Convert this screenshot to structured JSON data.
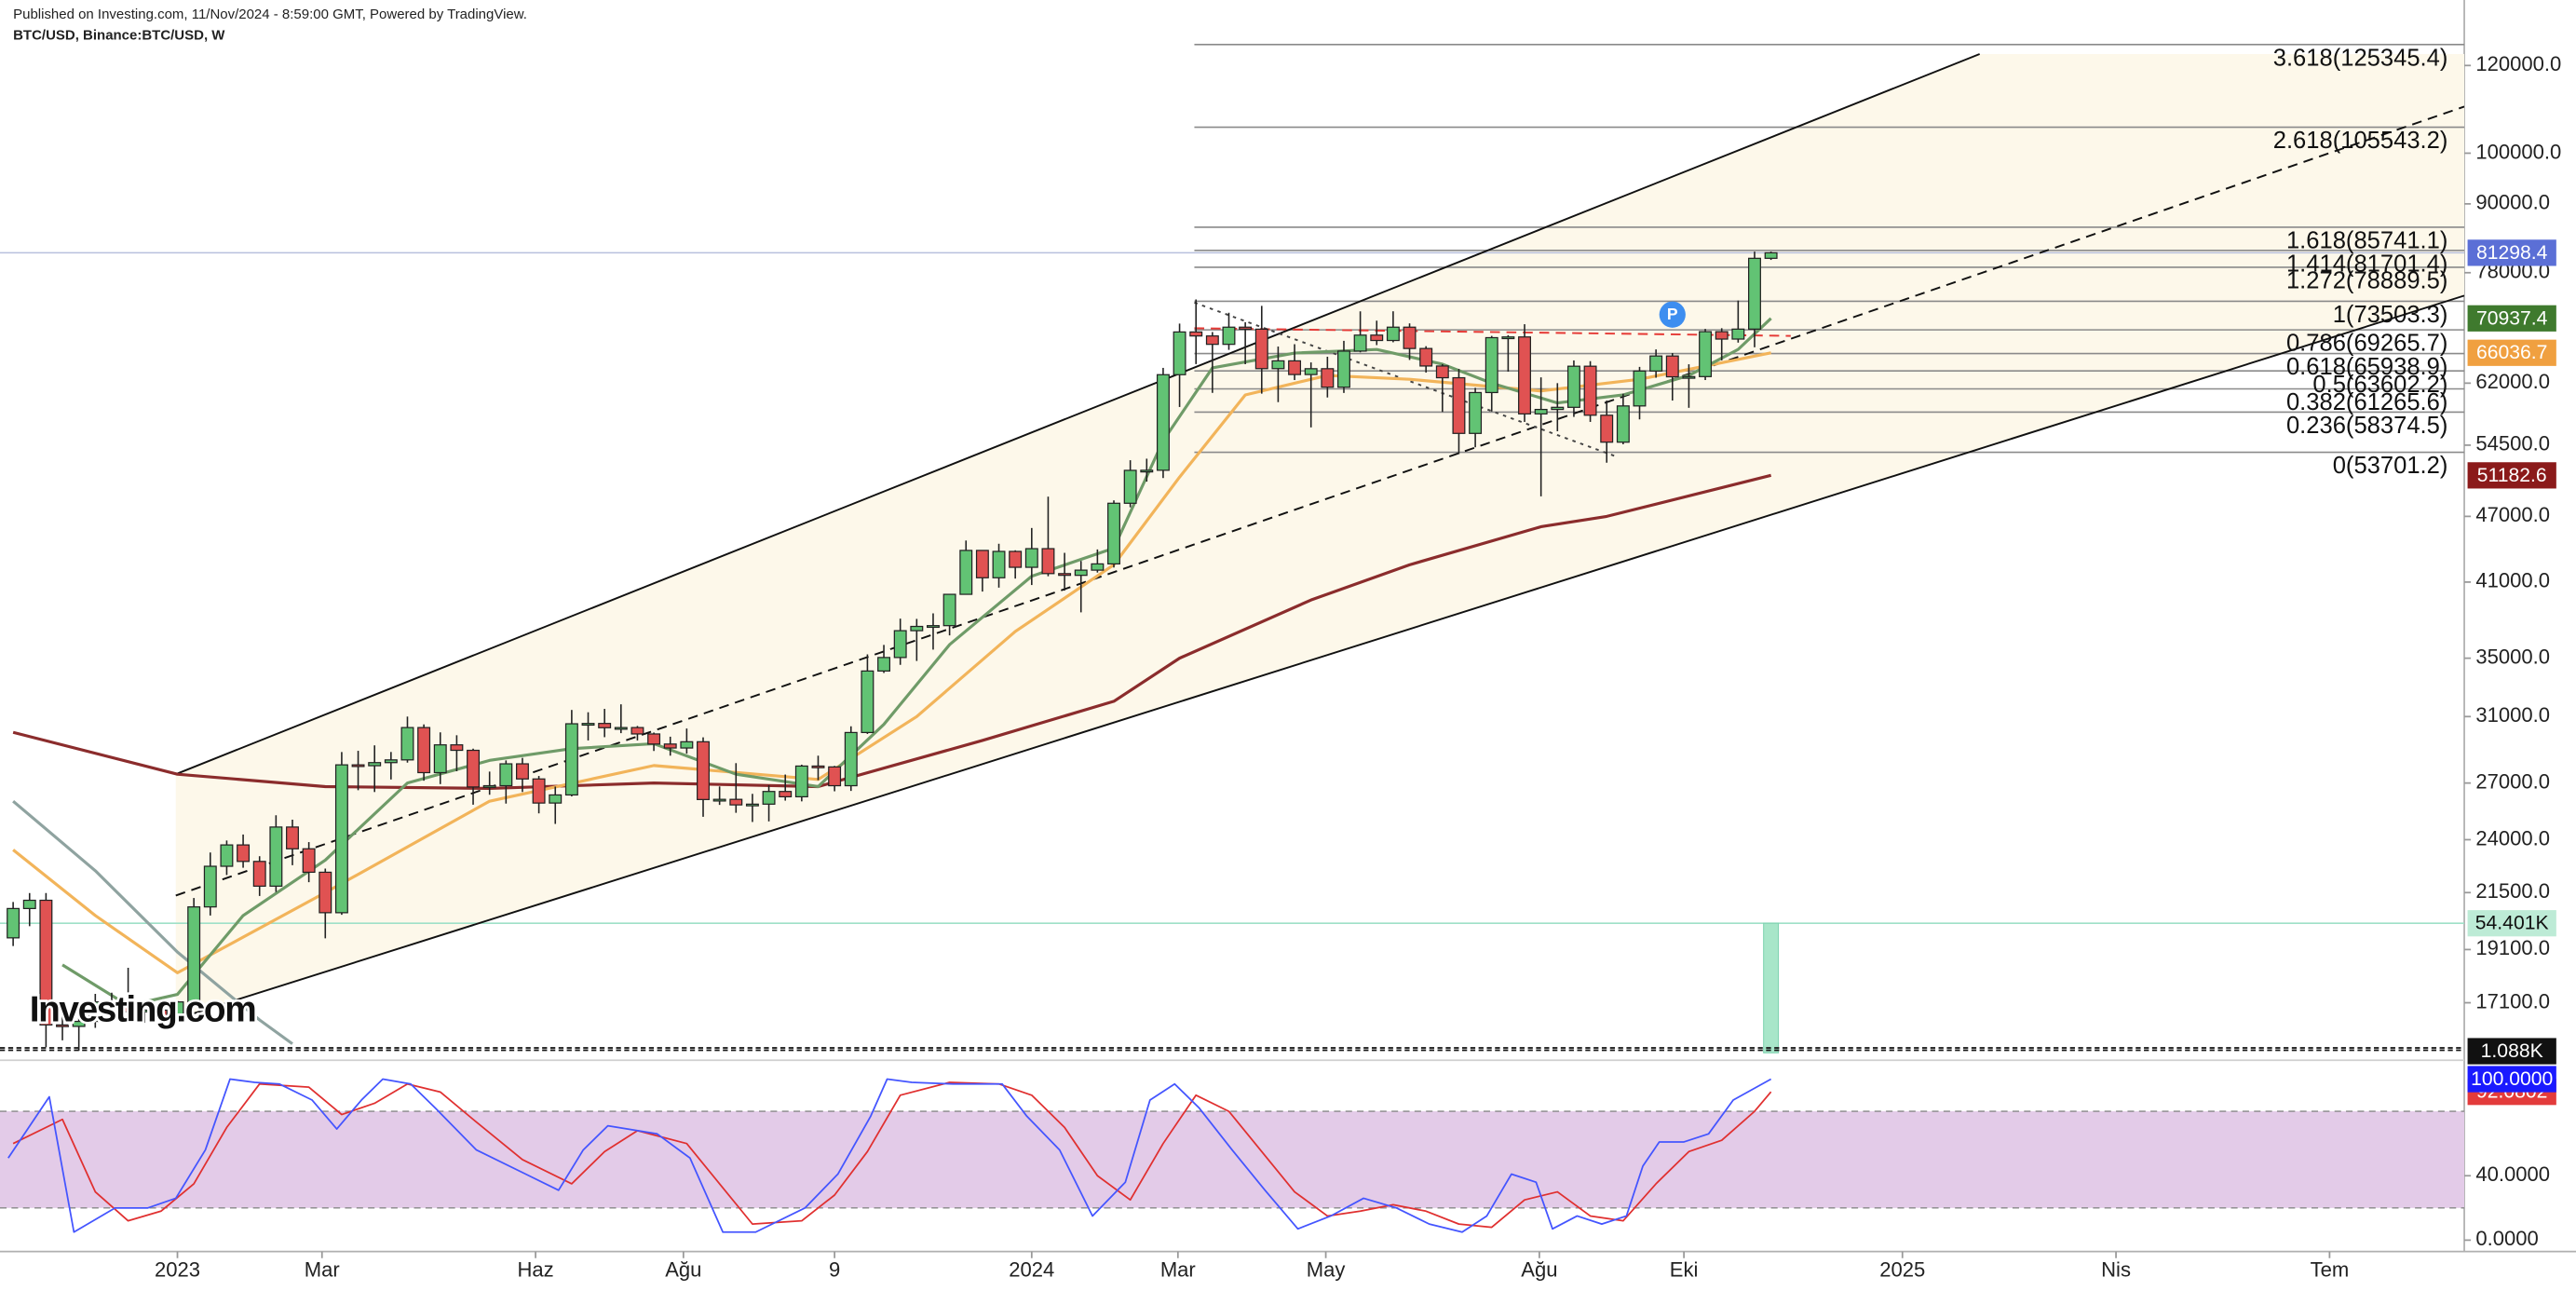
{
  "chart_data": {
    "type": "candlestick",
    "published": "Published on Investing.com, 11/Nov/2024 - 8:59:00 GMT, Powered by TradingView.",
    "symbol": "BTC/USD, Binance:BTC/USD, W",
    "watermark": "Investing.com",
    "marker_label": "P",
    "marker_x": 101,
    "marker_value": 71500,
    "log_scale": true,
    "xlim": [
      -0.8,
      149.2
    ],
    "ylim": [
      15200,
      137500
    ],
    "xticks": [
      {
        "value": 10,
        "label": "2023"
      },
      {
        "value": 18.8,
        "label": "Mar"
      },
      {
        "value": 31.8,
        "label": "Haz"
      },
      {
        "value": 40.8,
        "label": "Ağu"
      },
      {
        "value": 50,
        "label": "9"
      },
      {
        "value": 62,
        "label": "2024"
      },
      {
        "value": 70.9,
        "label": "Mar"
      },
      {
        "value": 79.9,
        "label": "May"
      },
      {
        "value": 92.9,
        "label": "Ağu"
      },
      {
        "value": 101.7,
        "label": "Eki"
      },
      {
        "value": 115,
        "label": "2025"
      },
      {
        "value": 128,
        "label": "Nis"
      },
      {
        "value": 141,
        "label": "Tem"
      }
    ],
    "yticks": [
      {
        "value": 120000,
        "label": "120000.0"
      },
      {
        "value": 100000,
        "label": "100000.0"
      },
      {
        "value": 90000,
        "label": "90000.0"
      },
      {
        "value": 78000,
        "label": "78000.0"
      },
      {
        "value": 62000,
        "label": "62000.0"
      },
      {
        "value": 54500,
        "label": "54500.0"
      },
      {
        "value": 47000,
        "label": "47000.0"
      },
      {
        "value": 41000,
        "label": "41000.0"
      },
      {
        "value": 35000,
        "label": "35000.0"
      },
      {
        "value": 31000,
        "label": "31000.0"
      },
      {
        "value": 27000,
        "label": "27000.0"
      },
      {
        "value": 24000,
        "label": "24000.0"
      },
      {
        "value": 21500,
        "label": "21500.0"
      },
      {
        "value": 19100,
        "label": "19100.0"
      },
      {
        "value": 17100,
        "label": "17100.0"
      }
    ],
    "up_color": "#62c374",
    "down_color": "#e05252",
    "price_line_color": "#5b6fd6",
    "candles": {
      "open": [
        19570,
        20800,
        21160,
        16330,
        16280,
        16450,
        17130,
        17100,
        16780,
        16840,
        16610,
        17130,
        20870,
        22710,
        23740,
        22940,
        21790,
        24640,
        23550,
        22430,
        20620,
        28040,
        27990,
        28170,
        28330,
        30300,
        27590,
        29230,
        28900,
        26780,
        26850,
        28100,
        27230,
        25900,
        26340,
        30540,
        30560,
        30290,
        30300,
        29900,
        29280,
        29040,
        29420,
        26090,
        26100,
        25800,
        25840,
        26530,
        26240,
        27970,
        27920,
        26850,
        29990,
        34080,
        35050,
        37060,
        37390,
        37450,
        39970,
        43790,
        41370,
        43700,
        42280,
        43950,
        41730,
        41580,
        42030,
        42580,
        48300,
        51720,
        51730,
        63100,
        68960,
        68390,
        67210,
        69650,
        69360,
        63900,
        64940,
        63120,
        63890,
        61480,
        66270,
        68510,
        67750,
        69650,
        66630,
        64250,
        62700,
        55850,
        60800,
        68150,
        68250,
        58160,
        58700,
        58960,
        64220,
        58000,
        54840,
        59130,
        63580,
        65600,
        62820,
        62850,
        69000,
        67950,
        69370,
        80370
      ],
      "high": [
        21085,
        21480,
        21480,
        17190,
        16770,
        17420,
        17460,
        18390,
        16950,
        16970,
        17170,
        21260,
        23370,
        23960,
        24260,
        23190,
        25250,
        25020,
        23880,
        22600,
        28800,
        28870,
        29200,
        28800,
        31000,
        30500,
        30000,
        29820,
        29000,
        27650,
        28300,
        28450,
        27400,
        26800,
        31430,
        31280,
        31500,
        31800,
        30400,
        29990,
        29730,
        30240,
        29690,
        26810,
        28140,
        26400,
        26880,
        27480,
        28050,
        28580,
        27980,
        30380,
        35280,
        35980,
        38000,
        37980,
        38420,
        40000,
        44700,
        43800,
        44400,
        43800,
        45880,
        48970,
        43570,
        42840,
        43880,
        48590,
        52820,
        52990,
        64000,
        70170,
        73780,
        68950,
        71770,
        70370,
        72800,
        66900,
        67230,
        64730,
        65500,
        67700,
        71980,
        70600,
        71990,
        70200,
        66950,
        64500,
        63860,
        61400,
        68400,
        68500,
        70080,
        62750,
        62000,
        65000,
        64900,
        59800,
        60650,
        64130,
        66500,
        66000,
        64480,
        69400,
        69500,
        73620,
        81500,
        81500
      ],
      "low": [
        19240,
        20050,
        15590,
        15815,
        15475,
        16230,
        16730,
        16530,
        16400,
        16330,
        16500,
        17100,
        20500,
        22300,
        22640,
        21350,
        21530,
        22760,
        21970,
        19550,
        20530,
        26600,
        26500,
        27200,
        28170,
        27130,
        26940,
        27670,
        25810,
        26350,
        25870,
        26500,
        25350,
        24800,
        26260,
        29500,
        29700,
        29950,
        29500,
        28860,
        28580,
        28700,
        25170,
        25800,
        25380,
        24900,
        24930,
        26030,
        25990,
        27160,
        26540,
        26560,
        29900,
        33940,
        34520,
        34800,
        35630,
        36700,
        39970,
        40200,
        40530,
        41300,
        40750,
        41500,
        40280,
        38500,
        41820,
        42260,
        47900,
        50520,
        50900,
        59000,
        64500,
        60760,
        66440,
        64490,
        60660,
        59600,
        62400,
        56550,
        60180,
        60750,
        66100,
        67100,
        67500,
        65060,
        63380,
        58400,
        53500,
        54260,
        58450,
        63500,
        57200,
        49000,
        56100,
        57800,
        57200,
        52550,
        54600,
        57500,
        62700,
        59800,
        58900,
        62400,
        65000,
        67450,
        66800,
        80100
      ],
      "close": [
        20800,
        21160,
        16330,
        16280,
        16450,
        17130,
        17100,
        16780,
        16840,
        16610,
        17130,
        20870,
        22710,
        23740,
        22940,
        21790,
        24640,
        23550,
        22430,
        20620,
        28040,
        27990,
        28170,
        28330,
        30300,
        27590,
        29230,
        28900,
        26780,
        26850,
        28100,
        27230,
        25900,
        26340,
        30540,
        30560,
        30290,
        30300,
        29900,
        29280,
        29040,
        29420,
        26090,
        26100,
        25800,
        25840,
        26530,
        26240,
        27970,
        27920,
        26850,
        29990,
        34080,
        35050,
        37060,
        37390,
        37450,
        39970,
        43790,
        41370,
        43700,
        42280,
        43950,
        41730,
        41580,
        42030,
        42580,
        48300,
        51720,
        51730,
        63100,
        68960,
        68390,
        67210,
        69650,
        69360,
        63900,
        64940,
        63120,
        63890,
        61480,
        66270,
        68510,
        67750,
        69650,
        66630,
        64250,
        62700,
        55850,
        60800,
        68150,
        68250,
        58160,
        58700,
        58960,
        64220,
        58000,
        54840,
        59130,
        63580,
        65600,
        62820,
        62850,
        69000,
        67950,
        69370,
        80370,
        81298.4
      ]
    },
    "moving_averages": [
      {
        "color": "#8fa3a0",
        "x": [
          0,
          5,
          10,
          15,
          17
        ],
        "values": [
          26000,
          22500,
          19000,
          16500,
          15700
        ]
      },
      {
        "color": "#8b2c2c",
        "x": [
          0,
          10,
          19,
          29,
          39,
          49,
          59,
          67,
          71,
          79,
          85,
          93,
          97,
          107
        ],
        "values": [
          30000,
          27500,
          26800,
          26700,
          27000,
          26800,
          29500,
          32000,
          35000,
          39500,
          42500,
          46000,
          47000,
          51182.6
        ]
      },
      {
        "color": "#f2b45a",
        "x": [
          0,
          5,
          10,
          19,
          29,
          39,
          44,
          49,
          55,
          61,
          67,
          71,
          75,
          80,
          85,
          93,
          99,
          107
        ],
        "values": [
          23500,
          20500,
          18200,
          21500,
          26000,
          28000,
          27600,
          27200,
          31000,
          37000,
          42500,
          51000,
          60500,
          63000,
          62500,
          61000,
          62500,
          66036.7
        ]
      },
      {
        "color": "#6f9b68",
        "x": [
          3,
          7,
          10,
          14,
          19,
          24,
          29,
          34,
          39,
          44,
          49,
          53,
          57,
          62,
          67,
          70,
          73,
          78,
          83,
          87,
          90,
          94,
          98,
          102,
          105,
          107
        ],
        "values": [
          18500,
          17000,
          17400,
          20500,
          23000,
          27000,
          28300,
          29000,
          29300,
          27500,
          26800,
          30500,
          36000,
          41500,
          44000,
          55000,
          64000,
          66000,
          66500,
          64500,
          62000,
          59500,
          60500,
          63000,
          66500,
          70937.4
        ]
      }
    ],
    "ma_label_colors": [
      "#8b1a1a",
      "#f0a040",
      "#3f7a2e"
    ],
    "channel_color": "#fdf8ea",
    "trendlines": [
      {
        "color": "#111111",
        "style": "solid",
        "x": [
          9.9,
          119.7
        ],
        "values": [
          27500,
          122900
        ]
      },
      {
        "color": "#111111",
        "style": "dashed",
        "x": [
          9.9,
          149.2
        ],
        "values": [
          21370,
          110170
        ]
      },
      {
        "color": "#111111",
        "style": "solid",
        "x": [
          9.9,
          149.2
        ],
        "values": [
          16530,
          74370
        ]
      },
      {
        "color": "#e53935",
        "style": "dashed",
        "x": [
          71.9,
          108.2
        ],
        "values": [
          69500,
          68400
        ]
      },
      {
        "color": "#444444",
        "style": "dotted",
        "x": [
          71.9,
          97.7
        ],
        "values": [
          73300,
          53150
        ]
      }
    ],
    "fib": {
      "x_start": 71.9,
      "color": "#8a8a8a",
      "levels": [
        {
          "value": 125345.4,
          "label": "3.618(125345.4)"
        },
        {
          "value": 105543.2,
          "label": "2.618(105543.2)"
        },
        {
          "value": 85741.1,
          "label": "1.618(85741.1)"
        },
        {
          "value": 81701.4,
          "label": "1.414(81701.4)"
        },
        {
          "value": 78889.5,
          "label": "1.272(78889.5)"
        },
        {
          "value": 73503.3,
          "label": "1(73503.3)"
        },
        {
          "value": 69265.7,
          "label": "0.786(69265.7)"
        },
        {
          "value": 65938.9,
          "label": "0.618(65938.9)"
        },
        {
          "value": 63602.2,
          "label": "0.5(63602.2)"
        },
        {
          "value": 61265.6,
          "label": "0.382(61265.6)"
        },
        {
          "value": 58374.5,
          "label": "0.236(58374.5)"
        },
        {
          "value": 53701.2,
          "label": "0(53701.2)"
        }
      ]
    },
    "volume": {
      "x": [
        107
      ],
      "values": [
        54401
      ],
      "value_labels": [
        "54.401K"
      ],
      "ma": 1088,
      "ma_label": "1.088K",
      "vlim": [
        0,
        60000
      ],
      "color": "#a8e6c9"
    },
    "stoch": {
      "ylim": [
        -7.1,
        110.2
      ],
      "band": [
        20,
        80
      ],
      "band_color": "#e3cbe8",
      "yticks": [
        {
          "value": 40,
          "label": "40.0000"
        },
        {
          "value": 0,
          "label": "0.0000"
        }
      ],
      "series": [
        {
          "color": "#e03030",
          "x": [
            0,
            3,
            5,
            7,
            9,
            11,
            13,
            15,
            18,
            20,
            22,
            24,
            26,
            28,
            31,
            34,
            36,
            38,
            41,
            43,
            45,
            48,
            50,
            52,
            54,
            57,
            60,
            62,
            64,
            66,
            68,
            70,
            72,
            74,
            76,
            78,
            80,
            82,
            84,
            86,
            88,
            90,
            92,
            94,
            96,
            98,
            100,
            102,
            104,
            106,
            107
          ],
          "values": [
            60,
            75,
            30,
            12,
            18,
            35,
            70,
            97,
            95,
            78,
            85,
            97,
            92,
            75,
            50,
            35,
            55,
            68,
            60,
            35,
            10,
            12,
            28,
            55,
            90,
            98,
            97,
            90,
            70,
            40,
            25,
            60,
            90,
            80,
            55,
            30,
            15,
            18,
            22,
            18,
            10,
            8,
            25,
            30,
            15,
            12,
            35,
            55,
            62,
            80,
            92.0802
          ]
        },
        {
          "color": "#4455ff",
          "last_label": "100.0000",
          "x": [
            -0.3,
            2.2,
            3.7,
            6.2,
            8.2,
            9.9,
            11.7,
            13.2,
            14.7,
            16.2,
            18.2,
            19.7,
            21.2,
            22.5,
            24.2,
            25.7,
            28.2,
            31.2,
            33.2,
            34.7,
            36.2,
            39.2,
            41.2,
            43.2,
            45.2,
            48.2,
            50.2,
            52.2,
            53.2,
            54.7,
            57.2,
            60.2,
            61.7,
            63.7,
            65.7,
            67.7,
            69.2,
            70.7,
            72.2,
            74.2,
            76.2,
            78.2,
            80.2,
            82.2,
            84.2,
            86.2,
            88.2,
            89.7,
            91.2,
            92.7,
            93.7,
            95.2,
            96.7,
            98.2,
            99.2,
            100.2,
            101.7,
            103.2,
            104.7,
            107
          ],
          "values": [
            51,
            89,
            5,
            20,
            20,
            26,
            56,
            100,
            98,
            97,
            87,
            69,
            87,
            100,
            97,
            82,
            56,
            41,
            31,
            56,
            71,
            66,
            51,
            5,
            5,
            20,
            41,
            77,
            100,
            98,
            97,
            97,
            77,
            56,
            15,
            36,
            87,
            97,
            82,
            56,
            31,
            7,
            15,
            26,
            20,
            10,
            5,
            15,
            41,
            36,
            7,
            15,
            10,
            15,
            46,
            61,
            61,
            66,
            87,
            100
          ]
        }
      ]
    }
  }
}
